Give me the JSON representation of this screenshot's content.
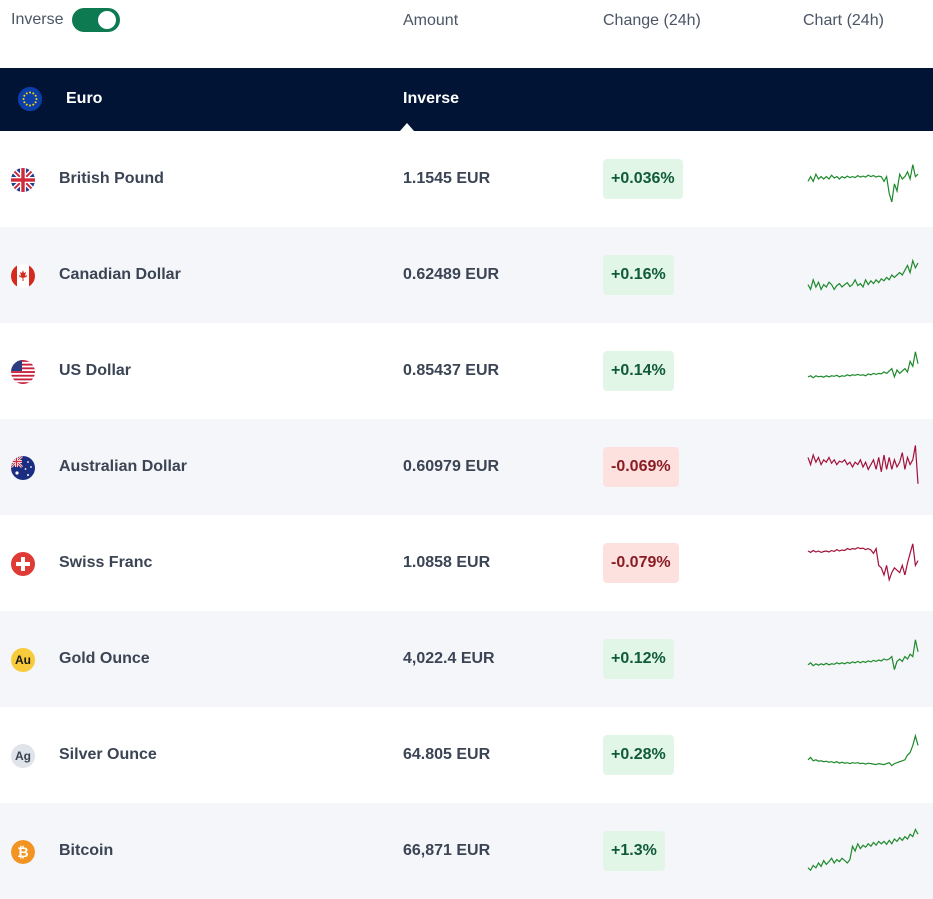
{
  "header": {
    "toggle_label": "Inverse",
    "col_amount": "Amount",
    "col_change": "Change (24h)",
    "col_chart": "Chart (24h)"
  },
  "base": {
    "name": "Euro",
    "inverse_label": "Inverse"
  },
  "colors": {
    "nav_bg": "#011435",
    "toggle_on": "#0e7a52",
    "up_text": "#0f5b36",
    "up_bg": "#e2f6e8",
    "down_text": "#8a1d24",
    "down_bg": "#fde1df",
    "spark_up": "#1f8a2c",
    "spark_down": "#a3113a"
  },
  "rows": [
    {
      "name": "British Pound",
      "amount": "1.1545 EUR",
      "change": "+0.036%",
      "direction": "up",
      "icon": "uk-flag-icon",
      "spark": [
        0.55,
        0.45,
        0.55,
        0.4,
        0.5,
        0.45,
        0.5,
        0.45,
        0.5,
        0.42,
        0.48,
        0.45,
        0.5,
        0.45,
        0.48,
        0.44,
        0.47,
        0.45,
        0.47,
        0.43,
        0.46,
        0.44,
        0.46,
        0.42,
        0.45,
        0.43,
        0.46,
        0.44,
        0.45,
        0.55,
        0.45,
        0.8,
        0.98,
        0.6,
        0.75,
        0.4,
        0.5,
        0.45,
        0.35,
        0.5,
        0.2,
        0.45,
        0.4
      ]
    },
    {
      "name": "Canadian Dollar",
      "amount": "0.62489 EUR",
      "change": "+0.16%",
      "direction": "up",
      "icon": "canada-flag-icon",
      "spark": [
        0.7,
        0.8,
        0.6,
        0.75,
        0.65,
        0.8,
        0.7,
        0.75,
        0.65,
        0.7,
        0.8,
        0.72,
        0.68,
        0.75,
        0.7,
        0.66,
        0.74,
        0.7,
        0.6,
        0.72,
        0.68,
        0.75,
        0.6,
        0.7,
        0.62,
        0.68,
        0.6,
        0.66,
        0.58,
        0.62,
        0.55,
        0.6,
        0.5,
        0.55,
        0.5,
        0.45,
        0.5,
        0.4,
        0.3,
        0.45,
        0.2,
        0.35,
        0.25
      ]
    },
    {
      "name": "US Dollar",
      "amount": "0.85437 EUR",
      "change": "+0.14%",
      "direction": "up",
      "icon": "us-flag-icon",
      "spark": [
        0.62,
        0.6,
        0.64,
        0.6,
        0.62,
        0.61,
        0.63,
        0.6,
        0.62,
        0.6,
        0.61,
        0.59,
        0.62,
        0.6,
        0.61,
        0.58,
        0.6,
        0.58,
        0.59,
        0.57,
        0.59,
        0.58,
        0.6,
        0.56,
        0.58,
        0.55,
        0.57,
        0.55,
        0.56,
        0.52,
        0.55,
        0.5,
        0.45,
        0.62,
        0.48,
        0.55,
        0.5,
        0.45,
        0.52,
        0.3,
        0.4,
        0.1,
        0.35
      ]
    },
    {
      "name": "Australian Dollar",
      "amount": "0.60979 EUR",
      "change": "-0.069%",
      "direction": "down",
      "icon": "australia-flag-icon",
      "spark": [
        0.3,
        0.45,
        0.25,
        0.4,
        0.3,
        0.45,
        0.35,
        0.4,
        0.3,
        0.42,
        0.35,
        0.45,
        0.38,
        0.4,
        0.35,
        0.45,
        0.4,
        0.5,
        0.4,
        0.45,
        0.35,
        0.5,
        0.4,
        0.55,
        0.45,
        0.35,
        0.55,
        0.3,
        0.6,
        0.25,
        0.55,
        0.3,
        0.55,
        0.35,
        0.5,
        0.4,
        0.2,
        0.55,
        0.3,
        0.45,
        0.35,
        0.05,
        0.85
      ]
    },
    {
      "name": "Swiss Franc",
      "amount": "1.0858 EUR",
      "change": "-0.079%",
      "direction": "down",
      "icon": "swiss-flag-icon",
      "spark": [
        0.25,
        0.28,
        0.24,
        0.27,
        0.25,
        0.28,
        0.26,
        0.25,
        0.27,
        0.24,
        0.26,
        0.22,
        0.25,
        0.23,
        0.24,
        0.2,
        0.22,
        0.2,
        0.21,
        0.18,
        0.2,
        0.19,
        0.22,
        0.2,
        0.23,
        0.3,
        0.2,
        0.55,
        0.6,
        0.75,
        0.55,
        0.85,
        0.7,
        0.6,
        0.65,
        0.7,
        0.55,
        0.75,
        0.5,
        0.3,
        0.1,
        0.55,
        0.45
      ]
    },
    {
      "name": "Gold Ounce",
      "amount": "4,022.4 EUR",
      "change": "+0.12%",
      "direction": "up",
      "icon": "gold-icon",
      "icon_text": "Au",
      "spark": [
        0.62,
        0.58,
        0.64,
        0.6,
        0.63,
        0.6,
        0.62,
        0.59,
        0.62,
        0.6,
        0.61,
        0.58,
        0.6,
        0.58,
        0.6,
        0.57,
        0.59,
        0.56,
        0.58,
        0.55,
        0.58,
        0.55,
        0.57,
        0.54,
        0.56,
        0.53,
        0.55,
        0.52,
        0.54,
        0.5,
        0.52,
        0.5,
        0.45,
        0.72,
        0.55,
        0.5,
        0.55,
        0.45,
        0.5,
        0.4,
        0.45,
        0.1,
        0.35
      ]
    },
    {
      "name": "Silver Ounce",
      "amount": "64.805 EUR",
      "change": "+0.28%",
      "direction": "up",
      "icon": "silver-icon",
      "icon_text": "Ag",
      "spark": [
        0.6,
        0.55,
        0.62,
        0.6,
        0.63,
        0.62,
        0.64,
        0.63,
        0.65,
        0.64,
        0.66,
        0.64,
        0.67,
        0.65,
        0.67,
        0.66,
        0.68,
        0.66,
        0.67,
        0.66,
        0.68,
        0.67,
        0.69,
        0.67,
        0.68,
        0.69,
        0.7,
        0.68,
        0.69,
        0.7,
        0.68,
        0.66,
        0.72,
        0.68,
        0.66,
        0.64,
        0.62,
        0.6,
        0.5,
        0.45,
        0.3,
        0.1,
        0.3
      ]
    },
    {
      "name": "Bitcoin",
      "amount": "66,871 EUR",
      "change": "+1.3%",
      "direction": "up",
      "icon": "bitcoin-icon",
      "spark": [
        0.85,
        0.9,
        0.8,
        0.85,
        0.75,
        0.82,
        0.7,
        0.78,
        0.72,
        0.65,
        0.75,
        0.68,
        0.72,
        0.65,
        0.7,
        0.75,
        0.68,
        0.4,
        0.5,
        0.35,
        0.45,
        0.38,
        0.42,
        0.35,
        0.4,
        0.32,
        0.38,
        0.3,
        0.35,
        0.3,
        0.36,
        0.28,
        0.35,
        0.25,
        0.3,
        0.22,
        0.28,
        0.2,
        0.25,
        0.15,
        0.2,
        0.05,
        0.15
      ]
    }
  ]
}
